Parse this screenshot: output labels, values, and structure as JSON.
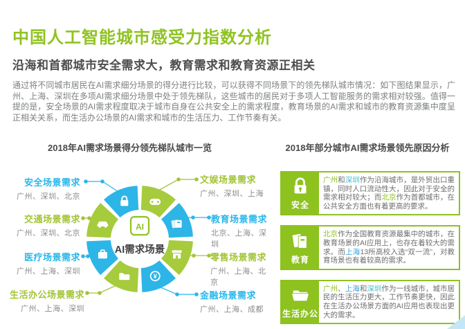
{
  "colors": {
    "brand_green": "#8fc320",
    "accent_blue": "#29b7ea",
    "wheel_green": "#a6cb3c",
    "wheel_blue": "#2db5e8",
    "box_green": "#8dc21f"
  },
  "header": {
    "title": "中国人工智能城市感受力指数分析",
    "subtitle": "沿海和首都城市安全需求大，教育需求和教育资源正相关",
    "paragraph": "通过将不同城市居民在AI需求细分场景的得分进行比较，可以获得不同场景下的领先梯队城市情况：如下图结果显示，广州、上海、深圳在多项AI需求细分场景中处于领先梯队，这些城市的居民对于多项人工智能服务的需求相对较强。值得一提的是，安全场景的AI需求程度取决于城市自身在公共安全上的需求程度，教育场景的AI需求和城市的教育资源集中度呈正相关关系，而生活办公场景的AI需求和城市的生活压力、工作节奏有关。"
  },
  "left_section": {
    "title": "2018年AI需求场景得分领先梯队城市一览",
    "center_icon_text": "AI",
    "center_label": "AI需求场景",
    "scenes": [
      {
        "label": "安全场景需求",
        "cities": "广州、深圳、北京",
        "color": "blue",
        "icon": "lock-icon"
      },
      {
        "label": "交通场景需求",
        "cities": "广州、深圳、北京",
        "color": "green",
        "icon": "car-icon"
      },
      {
        "label": "医疗场景需求",
        "cities": "广州、上海、深圳",
        "color": "blue",
        "icon": "medical-case-icon"
      },
      {
        "label": "生活办公场景需求",
        "cities": "广州、上海、深圳",
        "color": "green",
        "icon": "folder-icon"
      },
      {
        "label": "文娱场景需求",
        "cities": "广州、深圳、上海",
        "color": "green",
        "icon": "game-controller-icon"
      },
      {
        "label": "教育场景需求",
        "cities": "北京、上海、深圳",
        "color": "blue",
        "icon": "books-icon"
      },
      {
        "label": "零售场景需求",
        "cities": "广州、上海、北京",
        "color": "green",
        "icon": "storefront-icon"
      },
      {
        "label": "金融场景需求",
        "cities": "广州、上海、成都",
        "color": "blue",
        "icon": "yen-coin-icon"
      }
    ]
  },
  "right_section": {
    "title": "2018年部分城市AI需求场景领先原因分析",
    "boxes": [
      {
        "tag": "安全",
        "icon": "lock-icon",
        "segments": [
          {
            "t": "广州",
            "c": "green"
          },
          {
            "t": "和",
            "c": ""
          },
          {
            "t": "深圳",
            "c": "teal"
          },
          {
            "t": "作为沿海城市，是外贸出口重镇，同时人口流动性大，因此对于安全的需求相对较大；而",
            "c": ""
          },
          {
            "t": "北京",
            "c": "green"
          },
          {
            "t": "作为首都城市，在公共安全方面也有着更高的要求。",
            "c": ""
          }
        ]
      },
      {
        "tag": "教育",
        "icon": "books-icon",
        "segments": [
          {
            "t": "北京",
            "c": "green"
          },
          {
            "t": "作为全国教育资源最集中的城市，在教育场景的AI应用上，也存在着较大的需求。而",
            "c": ""
          },
          {
            "t": "上海",
            "c": "blue"
          },
          {
            "t": "13所高校入选“双一流”，对教育场景也有着较高的需求。",
            "c": ""
          }
        ]
      },
      {
        "tag": "生活办公",
        "icon": "folder-icon",
        "segments": [
          {
            "t": "广州",
            "c": "green"
          },
          {
            "t": "、",
            "c": ""
          },
          {
            "t": "上海",
            "c": "blue"
          },
          {
            "t": "和",
            "c": ""
          },
          {
            "t": "深圳",
            "c": "teal"
          },
          {
            "t": "作为一线城市，城市居民的生活压力更大，工作节奏更快，因此在生活办公场景方面的AI应用也表现出更大的需求。",
            "c": ""
          }
        ]
      }
    ]
  }
}
